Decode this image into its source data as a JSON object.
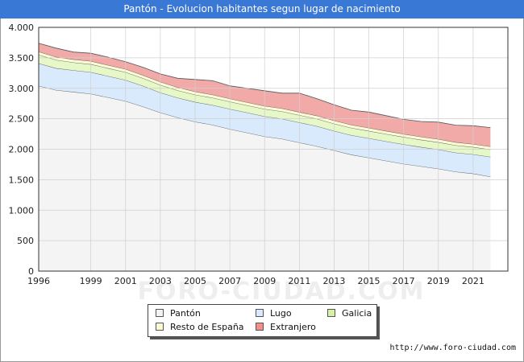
{
  "header": {
    "title": "Pantón - Evolucion habitantes segun lugar de nacimiento"
  },
  "footer": {
    "source": "http://www.foro-ciudad.com"
  },
  "watermark": "FORO-CIUDAD.COM",
  "chart_data": {
    "type": "area",
    "stacked": true,
    "grid": true,
    "ylim": [
      0,
      4000
    ],
    "xlim": [
      1996,
      2023
    ],
    "y_ticks": [
      0,
      500,
      1000,
      1500,
      2000,
      2500,
      3000,
      3500,
      4000
    ],
    "y_tick_labels": [
      "0",
      "500",
      "1.000",
      "1.500",
      "2.000",
      "2.500",
      "3.000",
      "3.500",
      "4.000"
    ],
    "x_ticks": [
      1996,
      1999,
      2001,
      2003,
      2005,
      2007,
      2009,
      2011,
      2013,
      2015,
      2017,
      2019,
      2021
    ],
    "x": [
      1996,
      1997,
      1998,
      1999,
      2000,
      2001,
      2002,
      2003,
      2004,
      2005,
      2006,
      2007,
      2008,
      2009,
      2010,
      2011,
      2012,
      2013,
      2014,
      2015,
      2016,
      2017,
      2018,
      2019,
      2020,
      2021,
      2022
    ],
    "series": [
      {
        "name": "Pantón",
        "color": "#f4f4f4",
        "values": [
          3040,
          2970,
          2940,
          2910,
          2850,
          2790,
          2700,
          2600,
          2520,
          2450,
          2400,
          2330,
          2270,
          2210,
          2170,
          2110,
          2050,
          1980,
          1910,
          1860,
          1810,
          1760,
          1720,
          1680,
          1630,
          1600,
          1550
        ]
      },
      {
        "name": "Lugo",
        "color": "#d9eafd",
        "values": [
          370,
          360,
          355,
          355,
          350,
          345,
          340,
          330,
          325,
          325,
          325,
          330,
          330,
          330,
          330,
          330,
          330,
          320,
          320,
          320,
          320,
          320,
          315,
          315,
          315,
          315,
          325
        ]
      },
      {
        "name": "Galicia",
        "color": "#e6f7c8",
        "values": [
          140,
          135,
          130,
          130,
          130,
          130,
          125,
          125,
          120,
          120,
          120,
          120,
          120,
          120,
          120,
          120,
          120,
          120,
          120,
          120,
          120,
          120,
          120,
          120,
          120,
          120,
          120
        ]
      },
      {
        "name": "Resto de España",
        "color": "#fdfbd3",
        "values": [
          50,
          50,
          50,
          50,
          50,
          50,
          50,
          50,
          50,
          50,
          50,
          50,
          50,
          50,
          50,
          50,
          50,
          50,
          50,
          50,
          50,
          50,
          50,
          50,
          50,
          50,
          50
        ]
      },
      {
        "name": "Extranjero",
        "color": "#f2aaa9",
        "values": [
          140,
          145,
          120,
          130,
          130,
          120,
          130,
          130,
          150,
          200,
          230,
          210,
          230,
          250,
          250,
          310,
          280,
          260,
          240,
          260,
          250,
          240,
          250,
          280,
          280,
          300,
          310
        ]
      }
    ]
  },
  "legend": {
    "items": [
      {
        "name": "Pantón",
        "color": "#f4f4f4"
      },
      {
        "name": "Lugo",
        "color": "#d9eafd"
      },
      {
        "name": "Galicia",
        "color": "#d6f2a5"
      },
      {
        "name": "Resto de España",
        "color": "#fdfbd3"
      },
      {
        "name": "Extranjero",
        "color": "#f08f8e"
      }
    ]
  }
}
